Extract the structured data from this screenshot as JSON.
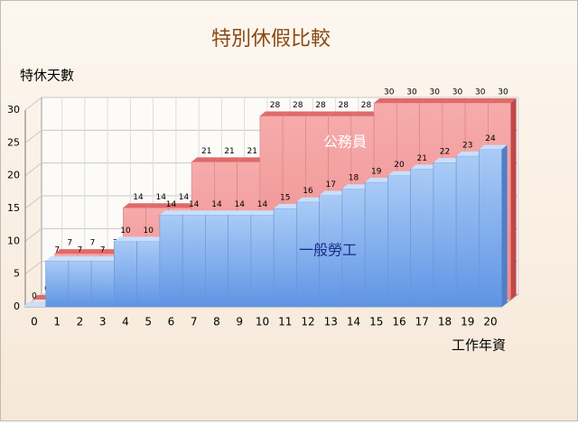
{
  "chart_data": {
    "type": "bar",
    "title": "特別休假比較",
    "y_label": "特休天數",
    "x_label": "工作年資",
    "categories": [
      "0",
      "1",
      "2",
      "3",
      "4",
      "5",
      "6",
      "7",
      "8",
      "9",
      "10",
      "11",
      "12",
      "13",
      "14",
      "15",
      "16",
      "17",
      "18",
      "19",
      "20"
    ],
    "series": [
      {
        "name": "公務員",
        "color": "#f3a2a2",
        "values": [
          0,
          7,
          7,
          7,
          14,
          14,
          14,
          21,
          21,
          21,
          28,
          28,
          28,
          28,
          28,
          30,
          30,
          30,
          30,
          30,
          30
        ]
      },
      {
        "name": "一般勞工",
        "color": "#8fb8f2",
        "values": [
          0,
          7,
          7,
          7,
          10,
          10,
          14,
          14,
          14,
          14,
          14,
          15,
          16,
          17,
          18,
          19,
          20,
          21,
          22,
          23,
          24
        ]
      }
    ],
    "ylim": [
      0,
      30
    ],
    "yticks": [
      0,
      5,
      10,
      15,
      20,
      25,
      30
    ],
    "grid": true
  }
}
